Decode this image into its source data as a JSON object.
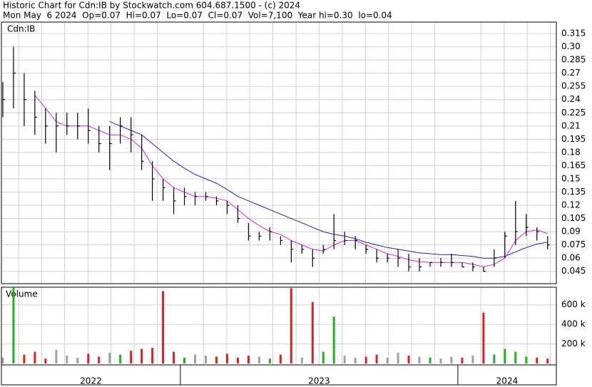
{
  "header": {
    "line1": "Historic Chart for Cdn:IB by Stockwatch.com 604.687.1500 - (c) 2024",
    "line2": "Mon May  6 2024  Op=0.07  Hi=0.07  Lo=0.07  Cl=0.07  Vol=7,100  Year hi=0.30  lo=0.04"
  },
  "chart_data": {
    "type": "ohlc",
    "symbol": "Cdn:IB",
    "x": [
      2022.36,
      2022.3985,
      2022.437,
      2022.4755,
      2022.514,
      2022.5525,
      2022.591,
      2022.6295,
      2022.668,
      2022.7065,
      2022.745,
      2022.7835,
      2022.822,
      2022.8605,
      2022.899,
      2022.9375,
      2022.976,
      2023.0145,
      2023.053,
      2023.0915,
      2023.13,
      2023.1685,
      2023.207,
      2023.2455,
      2023.284,
      2023.3225,
      2023.361,
      2023.3995,
      2023.438,
      2023.4765,
      2023.515,
      2023.5535,
      2023.592,
      2023.6305,
      2023.669,
      2023.7075,
      2023.746,
      2023.7845,
      2023.823,
      2023.8615,
      2023.9,
      2023.9385,
      2023.977,
      2024.0155,
      2024.054,
      2024.0925,
      2024.131,
      2024.1695,
      2024.208,
      2024.2465,
      2024.285,
      2024.3235
    ],
    "high": [
      0.26,
      0.3,
      0.27,
      0.25,
      0.23,
      0.225,
      0.225,
      0.225,
      0.23,
      0.21,
      0.21,
      0.22,
      0.22,
      0.2,
      0.17,
      0.15,
      0.14,
      0.14,
      0.135,
      0.135,
      0.13,
      0.125,
      0.12,
      0.1,
      0.09,
      0.095,
      0.085,
      0.08,
      0.075,
      0.07,
      0.075,
      0.11,
      0.09,
      0.085,
      0.075,
      0.07,
      0.065,
      0.07,
      0.065,
      0.06,
      0.055,
      0.06,
      0.065,
      0.055,
      0.055,
      0.05,
      0.07,
      0.09,
      0.125,
      0.11,
      0.095,
      0.085
    ],
    "low": [
      0.22,
      0.23,
      0.21,
      0.2,
      0.19,
      0.18,
      0.2,
      0.195,
      0.19,
      0.18,
      0.16,
      0.19,
      0.18,
      0.16,
      0.125,
      0.125,
      0.11,
      0.12,
      0.12,
      0.125,
      0.12,
      0.11,
      0.1,
      0.08,
      0.08,
      0.08,
      0.075,
      0.055,
      0.065,
      0.05,
      0.065,
      0.07,
      0.075,
      0.07,
      0.065,
      0.055,
      0.055,
      0.05,
      0.045,
      0.045,
      0.05,
      0.05,
      0.05,
      0.05,
      0.045,
      0.045,
      0.05,
      0.06,
      0.075,
      0.085,
      0.08,
      0.07
    ],
    "close": [
      0.24,
      0.27,
      0.24,
      0.22,
      0.21,
      0.21,
      0.21,
      0.21,
      0.205,
      0.19,
      0.19,
      0.21,
      0.2,
      0.17,
      0.15,
      0.14,
      0.125,
      0.13,
      0.13,
      0.13,
      0.125,
      0.12,
      0.105,
      0.085,
      0.085,
      0.09,
      0.08,
      0.07,
      0.07,
      0.06,
      0.07,
      0.08,
      0.08,
      0.08,
      0.07,
      0.06,
      0.06,
      0.06,
      0.05,
      0.05,
      0.055,
      0.055,
      0.055,
      0.05,
      0.05,
      0.045,
      0.06,
      0.085,
      0.09,
      0.095,
      0.09,
      0.075
    ],
    "bar_color": "#000000",
    "ma_fast": {
      "color": "#e020e0",
      "values": [
        null,
        null,
        null,
        0.245,
        0.23,
        0.215,
        0.21,
        0.21,
        0.21,
        0.205,
        0.2,
        0.2,
        0.195,
        0.185,
        0.165,
        0.15,
        0.14,
        0.135,
        0.13,
        0.13,
        0.128,
        0.125,
        0.115,
        0.105,
        0.097,
        0.09,
        0.087,
        0.08,
        0.075,
        0.07,
        0.068,
        0.075,
        0.08,
        0.08,
        0.075,
        0.07,
        0.065,
        0.062,
        0.058,
        0.056,
        0.055,
        0.055,
        0.055,
        0.055,
        0.053,
        0.05,
        0.053,
        0.06,
        0.08,
        0.09,
        0.092,
        0.088
      ]
    },
    "ma_slow": {
      "color": "#2020c0",
      "values": [
        null,
        null,
        null,
        null,
        null,
        null,
        null,
        null,
        null,
        null,
        0.215,
        0.21,
        0.205,
        0.2,
        0.19,
        0.18,
        0.17,
        0.162,
        0.155,
        0.15,
        0.145,
        0.138,
        0.13,
        0.125,
        0.12,
        0.115,
        0.11,
        0.105,
        0.1,
        0.095,
        0.09,
        0.087,
        0.085,
        0.082,
        0.078,
        0.075,
        0.072,
        0.07,
        0.068,
        0.066,
        0.065,
        0.064,
        0.064,
        0.063,
        0.062,
        0.06,
        0.06,
        0.062,
        0.067,
        0.072,
        0.076,
        0.078
      ]
    },
    "ylim": [
      0.031,
      0.328
    ],
    "yticks": [
      0.045,
      0.06,
      0.075,
      0.09,
      0.105,
      0.12,
      0.135,
      0.15,
      0.165,
      0.18,
      0.195,
      0.21,
      0.225,
      0.24,
      0.255,
      0.27,
      0.285,
      {
        "value": 0.3,
        "label": "0.30"
      },
      0.315
    ],
    "xlim": [
      2022.355,
      2024.355
    ],
    "xticks": [
      2023,
      2024
    ],
    "xminorticks": [
      2022.417,
      2022.5,
      2022.583,
      2022.667,
      2022.75,
      2022.833,
      2022.917,
      2023.083,
      2023.167,
      2023.25,
      2023.333,
      2023.417,
      2023.5,
      2023.583,
      2023.667,
      2023.75,
      2023.833,
      2023.917,
      2024.083,
      2024.167,
      2024.25,
      2024.333
    ],
    "year_labels": [
      "2022",
      "2023",
      "2024"
    ],
    "volume": {
      "label": "Volume",
      "values": [
        60000,
        780000,
        90000,
        120000,
        50000,
        140000,
        80000,
        60000,
        100000,
        70000,
        110000,
        90000,
        130000,
        150000,
        160000,
        740000,
        120000,
        60000,
        90000,
        80000,
        70000,
        100000,
        60000,
        80000,
        70000,
        50000,
        90000,
        770000,
        60000,
        630000,
        120000,
        480000,
        80000,
        60000,
        70000,
        90000,
        60000,
        110000,
        80000,
        70000,
        60000,
        50000,
        70000,
        60000,
        80000,
        520000,
        90000,
        150000,
        120000,
        70000,
        60000,
        50000
      ],
      "up_color": "#20b020",
      "down_color": "#e02020",
      "flat_color": "#a0a0a0",
      "ylim": [
        0,
        780000
      ],
      "yticks": [
        {
          "value": 200000,
          "label": "200 k"
        },
        {
          "value": 400000,
          "label": "400 k"
        },
        {
          "value": 600000,
          "label": "600 k"
        }
      ]
    }
  }
}
